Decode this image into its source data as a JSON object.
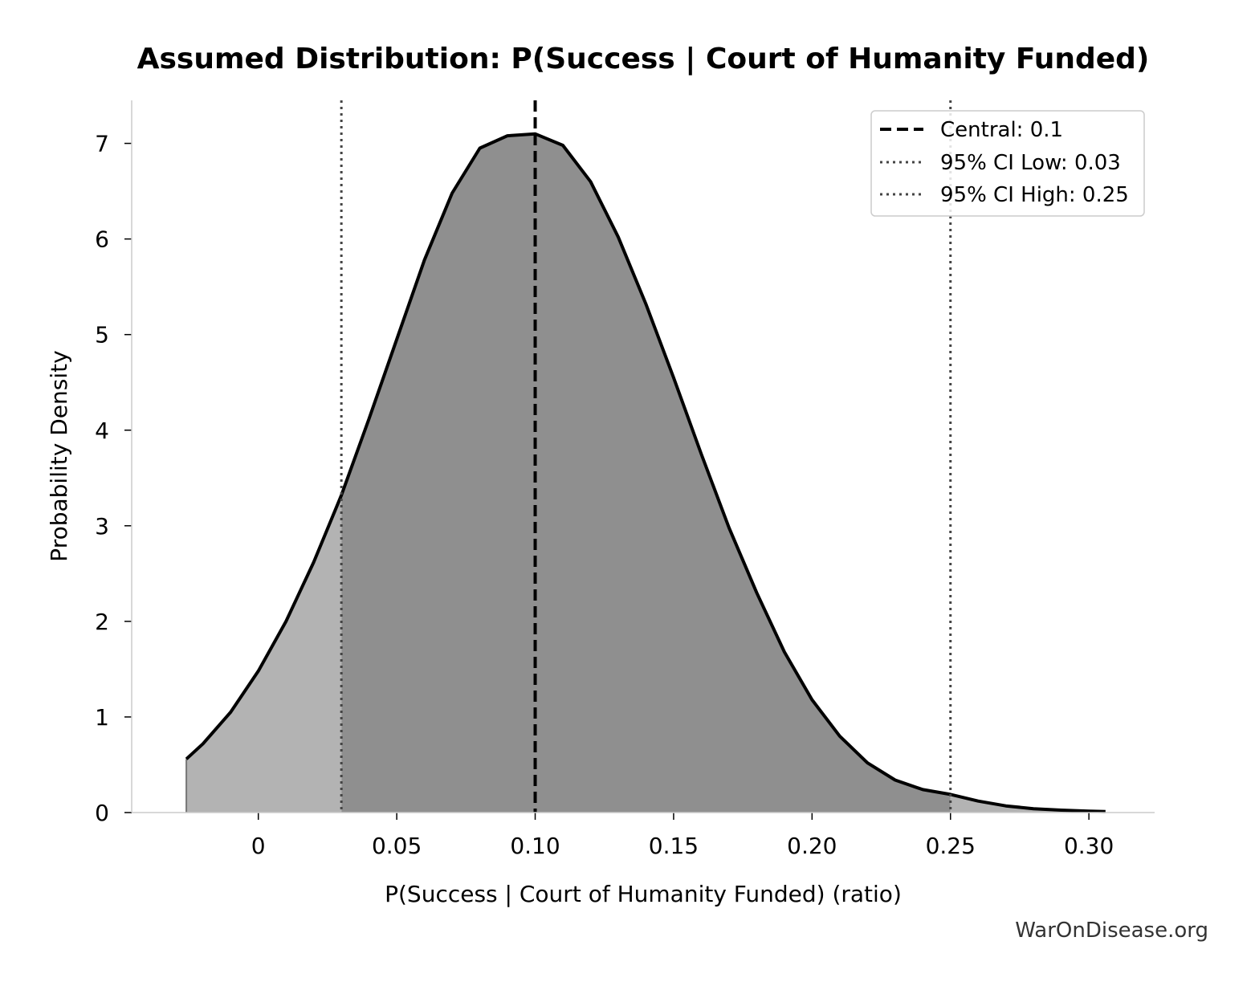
{
  "chart_data": {
    "type": "area",
    "title": "Assumed Distribution: P(Success | Court of Humanity Funded)",
    "xlabel": "P(Success | Court of Humanity Funded) (ratio)",
    "ylabel": "Probability Density",
    "xlim": [
      -0.044,
      0.322
    ],
    "ylim": [
      0,
      7.45
    ],
    "x_ticks": [
      0,
      0.05,
      0.1,
      0.15,
      0.2,
      0.25,
      0.3
    ],
    "x_tick_labels": [
      "0",
      "0.05",
      "0.10",
      "0.15",
      "0.20",
      "0.25",
      "0.30"
    ],
    "y_ticks": [
      0,
      1,
      2,
      3,
      4,
      5,
      6,
      7
    ],
    "y_tick_labels": [
      "0",
      "1",
      "2",
      "3",
      "4",
      "5",
      "6",
      "7"
    ],
    "curve": {
      "x": [
        -0.026,
        -0.02,
        -0.01,
        0.0,
        0.01,
        0.02,
        0.03,
        0.04,
        0.05,
        0.06,
        0.07,
        0.08,
        0.09,
        0.1,
        0.11,
        0.12,
        0.13,
        0.14,
        0.15,
        0.16,
        0.17,
        0.18,
        0.19,
        0.2,
        0.21,
        0.22,
        0.23,
        0.24,
        0.25,
        0.26,
        0.27,
        0.28,
        0.29,
        0.3,
        0.306
      ],
      "y": [
        0.56,
        0.72,
        1.05,
        1.48,
        2.0,
        2.62,
        3.32,
        4.12,
        4.95,
        5.78,
        6.48,
        6.95,
        7.08,
        7.1,
        6.98,
        6.6,
        6.02,
        5.32,
        4.55,
        3.75,
        2.98,
        2.3,
        1.68,
        1.18,
        0.8,
        0.52,
        0.34,
        0.24,
        0.19,
        0.12,
        0.07,
        0.04,
        0.025,
        0.015,
        0.01
      ]
    },
    "ci_low": 0.03,
    "ci_high": 0.25,
    "central": 0.1,
    "legend_position": "top-right",
    "legend": [
      {
        "label": "Central: 0.1",
        "style": "dashed"
      },
      {
        "label": "95% CI Low: 0.03",
        "style": "dotted"
      },
      {
        "label": "95% CI High: 0.25",
        "style": "dotted"
      }
    ],
    "colors": {
      "inner_fill": "#8f8f8f",
      "outer_fill": "#b3b3b3",
      "curve": "#000000",
      "ci_line": "#444444"
    },
    "grid": false
  },
  "watermark": "WarOnDisease.org"
}
